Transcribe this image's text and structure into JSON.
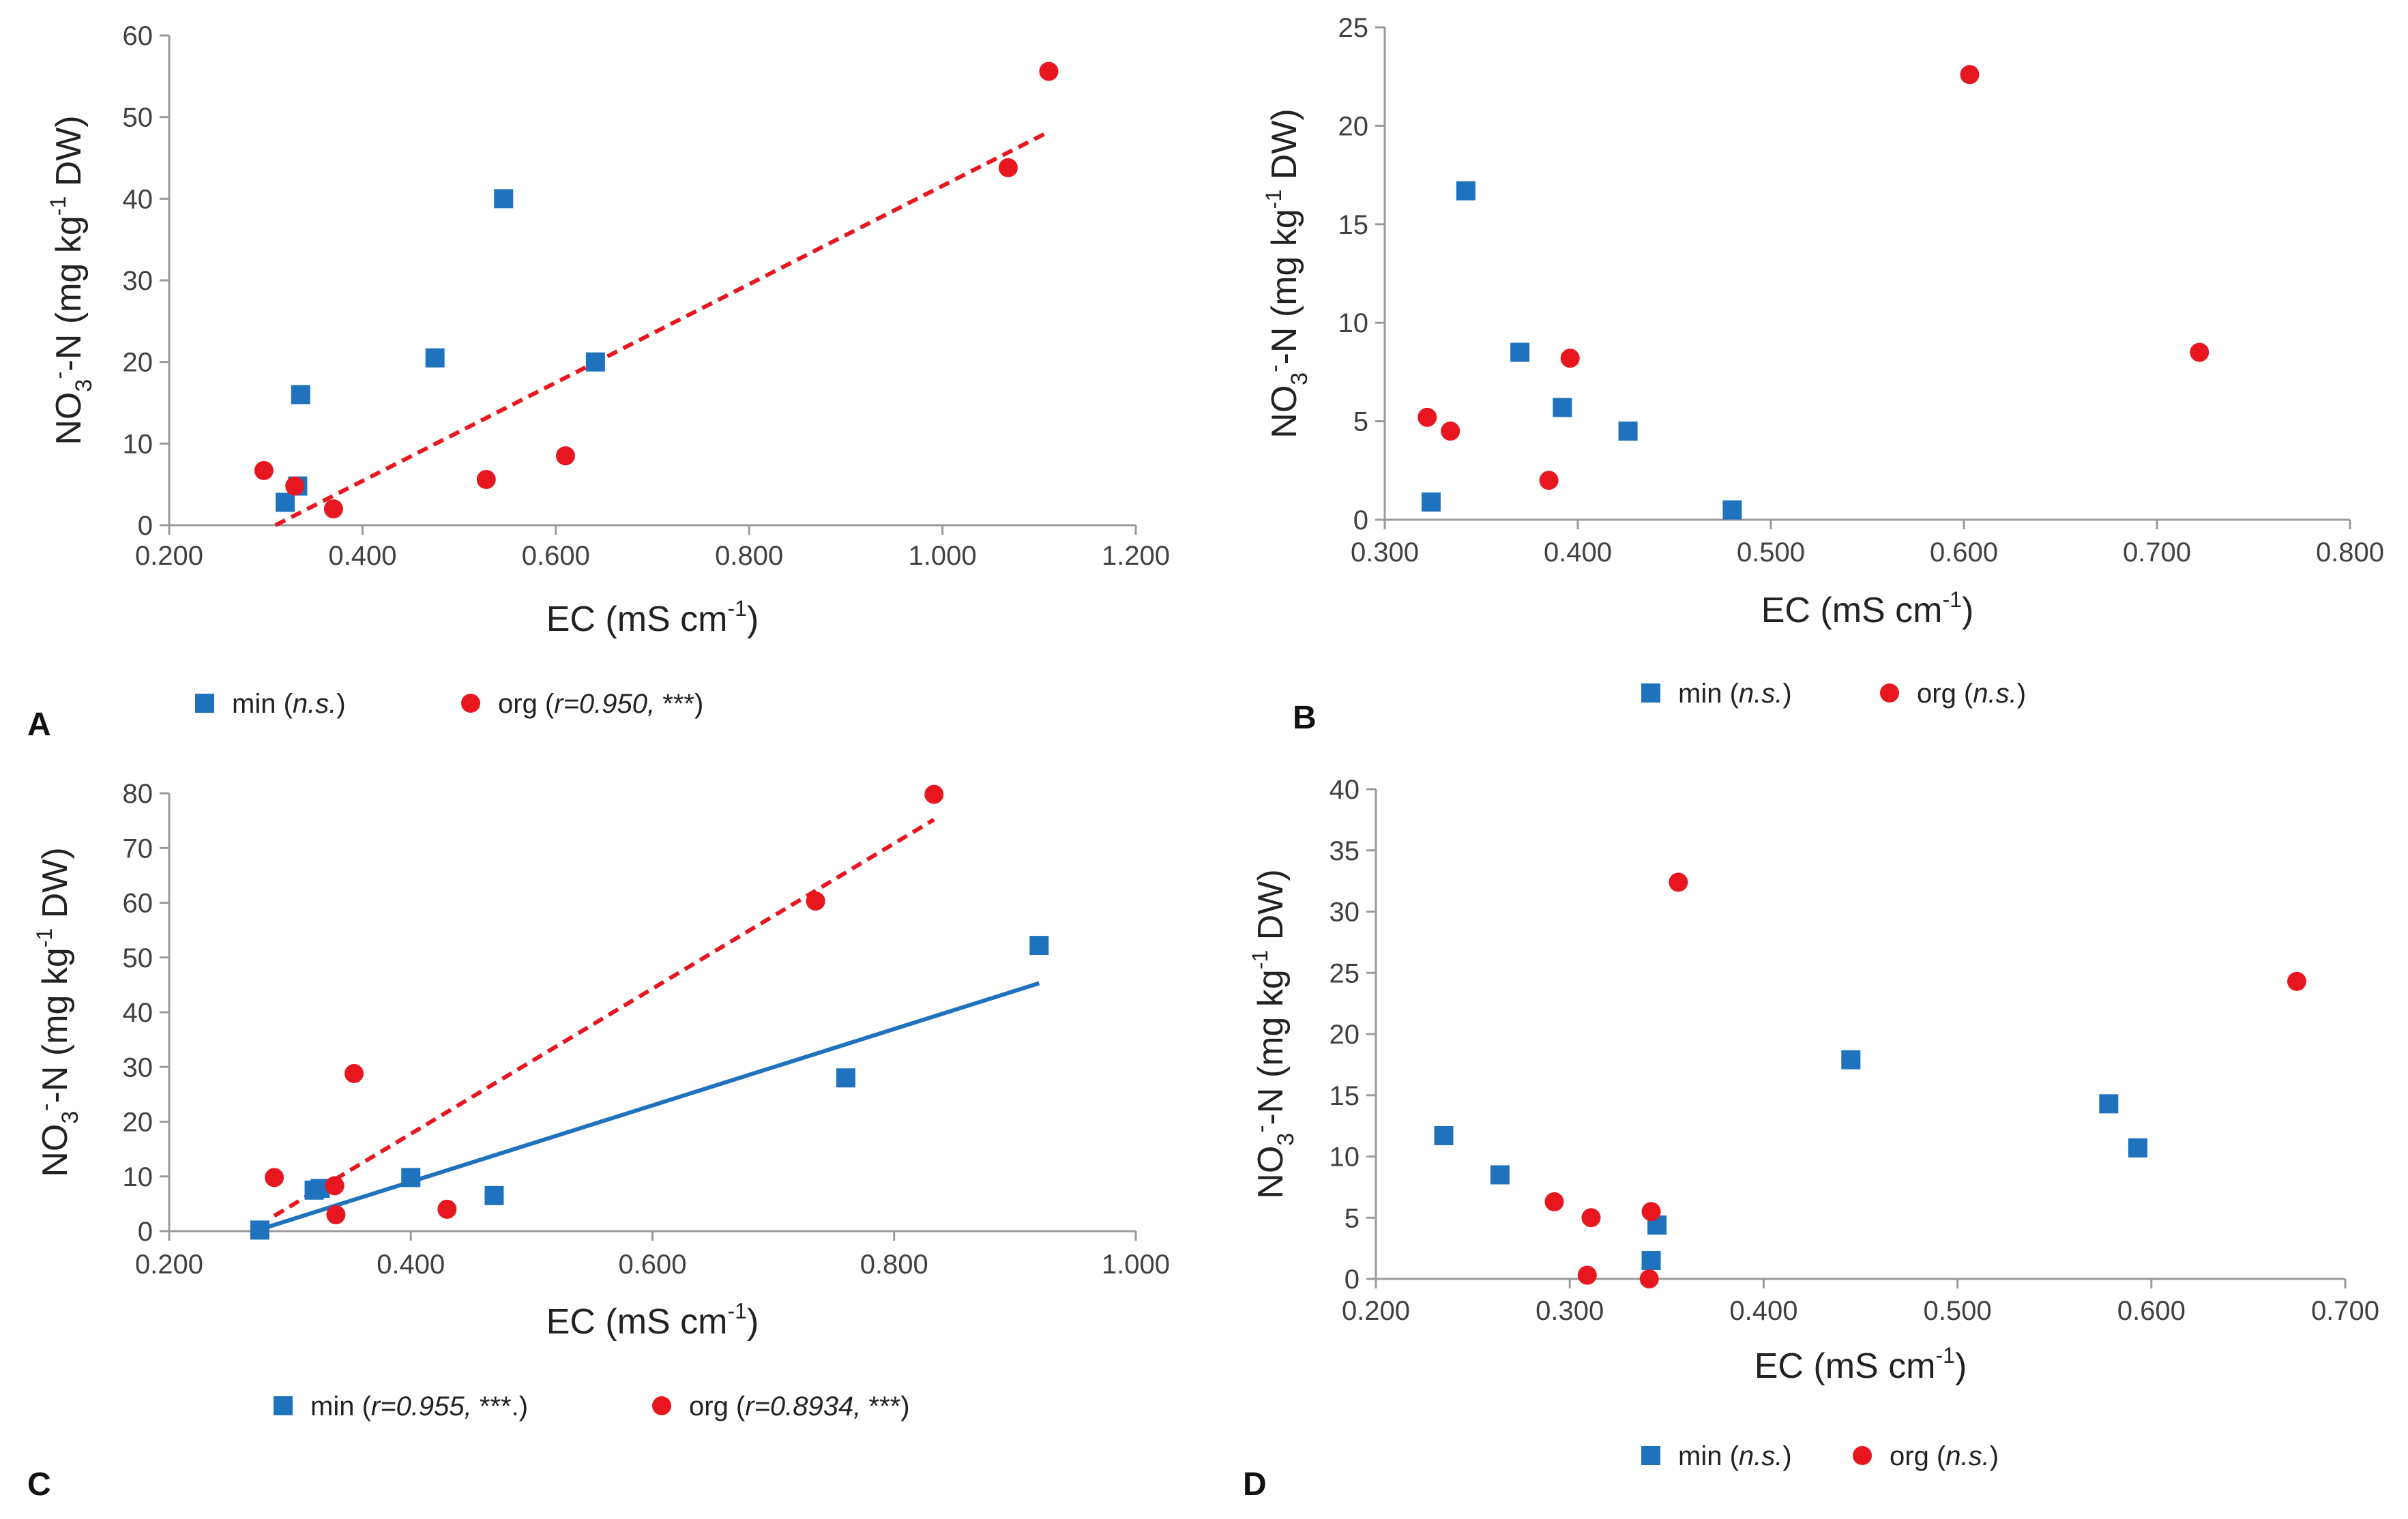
{
  "figure_title": "",
  "colors": {
    "min": "#1f72bd",
    "org": "#e8161e",
    "axis": "#9a9a9a",
    "text": "#222222"
  },
  "chart_data": [
    {
      "panel": "A",
      "type": "scatter",
      "title": "",
      "xlabel": "EC (mS cm",
      "xlabel_sup": "-1",
      "xlabel_end": ")",
      "ylabel": "NO3-N (mg kg-1 DW)",
      "ylabel_parts": [
        "NO",
        "3",
        "-",
        "-N (mg kg",
        "-1",
        " DW)"
      ],
      "xlim": [
        0.2,
        1.2
      ],
      "ylim": [
        0,
        60
      ],
      "x_ticks": [
        0.2,
        0.4,
        0.6,
        0.8,
        1.0,
        1.2
      ],
      "x_tick_labels": [
        "0.200",
        "0.400",
        "0.600",
        "0.800",
        "1.000",
        "1.200"
      ],
      "y_ticks": [
        0,
        10,
        20,
        30,
        40,
        50,
        60
      ],
      "y_tick_labels": [
        "0",
        "10",
        "20",
        "30",
        "40",
        "50",
        "60"
      ],
      "grid": false,
      "legend": {
        "position": "bottom-left",
        "items": [
          {
            "series": "min",
            "label": "min (",
            "stat": "n.s.",
            "close": ")"
          },
          {
            "series": "org",
            "label": "org (",
            "stat": "r=0.950,",
            "close": " ***)"
          }
        ]
      },
      "series": [
        {
          "name": "min",
          "marker": "square",
          "points": [
            [
              0.32,
              2.8
            ],
            [
              0.333,
              4.8
            ],
            [
              0.336,
              16.0
            ],
            [
              0.475,
              20.5
            ],
            [
              0.546,
              40.0
            ],
            [
              0.641,
              20.0
            ]
          ]
        },
        {
          "name": "org",
          "marker": "circle",
          "points": [
            [
              0.298,
              6.7
            ],
            [
              0.33,
              4.8
            ],
            [
              0.37,
              2.0
            ],
            [
              0.528,
              5.6
            ],
            [
              0.61,
              8.5
            ],
            [
              1.068,
              43.8
            ],
            [
              1.11,
              55.6
            ]
          ]
        }
      ],
      "trendlines": [
        {
          "series": "org",
          "style": "dashed",
          "start": [
            0.31,
            0
          ],
          "end": [
            1.11,
            48.2
          ]
        }
      ]
    },
    {
      "panel": "B",
      "type": "scatter",
      "title": "",
      "xlabel": "EC (mS cm",
      "xlabel_sup": "-1",
      "xlabel_end": ")",
      "ylabel": "NO3-N (mg kg-1 DW)",
      "ylabel_parts": [
        "NO",
        "3",
        "-",
        "-N (mg kg",
        "-1",
        " DW)"
      ],
      "xlim": [
        0.3,
        0.8
      ],
      "ylim": [
        0,
        25
      ],
      "x_ticks": [
        0.3,
        0.4,
        0.5,
        0.6,
        0.7,
        0.8
      ],
      "x_tick_labels": [
        "0.300",
        "0.400",
        "0.500",
        "0.600",
        "0.700",
        "0.800"
      ],
      "y_ticks": [
        0,
        5,
        10,
        15,
        20,
        25
      ],
      "y_tick_labels": [
        "0",
        "5",
        "10",
        "15",
        "20",
        "25"
      ],
      "grid": false,
      "legend": {
        "position": "bottom-center",
        "items": [
          {
            "series": "min",
            "label": "min (",
            "stat": "n.s.",
            "close": ")"
          },
          {
            "series": "org",
            "label": "org (",
            "stat": "n.s.",
            "close": ")"
          }
        ]
      },
      "series": [
        {
          "name": "min",
          "marker": "square",
          "points": [
            [
              0.324,
              0.9
            ],
            [
              0.342,
              16.7
            ],
            [
              0.37,
              8.5
            ],
            [
              0.392,
              5.7
            ],
            [
              0.426,
              4.5
            ],
            [
              0.48,
              0.5
            ]
          ]
        },
        {
          "name": "org",
          "marker": "circle",
          "points": [
            [
              0.322,
              5.2
            ],
            [
              0.334,
              4.5
            ],
            [
              0.385,
              2.0
            ],
            [
              0.396,
              8.2
            ],
            [
              0.603,
              22.6
            ],
            [
              0.722,
              8.5
            ]
          ]
        }
      ],
      "trendlines": []
    },
    {
      "panel": "C",
      "type": "scatter",
      "title": "",
      "xlabel": "EC (mS cm",
      "xlabel_sup": "-1",
      "xlabel_end": ")",
      "ylabel": "NO3-N (mg kg-1 DW)",
      "ylabel_parts": [
        "NO",
        "3",
        "-",
        "-N (mg kg",
        "-1",
        " DW)"
      ],
      "xlim": [
        0.2,
        1.0
      ],
      "ylim": [
        0,
        80
      ],
      "x_ticks": [
        0.2,
        0.4,
        0.6,
        0.8,
        1.0
      ],
      "x_tick_labels": [
        "0.200",
        "0.400",
        "0.600",
        "0.800",
        "1.000"
      ],
      "y_ticks": [
        0,
        10,
        20,
        30,
        40,
        50,
        60,
        70,
        80
      ],
      "y_tick_labels": [
        "0",
        "10",
        "20",
        "30",
        "40",
        "50",
        "60",
        "70",
        "80"
      ],
      "grid": false,
      "legend": {
        "position": "bottom-center",
        "items": [
          {
            "series": "min",
            "label": "min (",
            "stat": "r=0.955,",
            "close": " ***.)"
          },
          {
            "series": "org",
            "label": "org (",
            "stat": "r=0.8934,",
            "close": " ***)"
          }
        ]
      },
      "series": [
        {
          "name": "min",
          "marker": "square",
          "points": [
            [
              0.275,
              0.2
            ],
            [
              0.32,
              7.5
            ],
            [
              0.325,
              7.8
            ],
            [
              0.4,
              9.8
            ],
            [
              0.469,
              6.5
            ],
            [
              0.76,
              28.0
            ],
            [
              0.92,
              52.2
            ]
          ]
        },
        {
          "name": "org",
          "marker": "circle",
          "points": [
            [
              0.287,
              9.8
            ],
            [
              0.337,
              8.3
            ],
            [
              0.338,
              3.0
            ],
            [
              0.353,
              28.8
            ],
            [
              0.43,
              4.0
            ],
            [
              0.735,
              60.3
            ],
            [
              0.833,
              79.8
            ]
          ]
        }
      ],
      "trendlines": [
        {
          "series": "min",
          "style": "solid",
          "start": [
            0.275,
            0.3
          ],
          "end": [
            0.92,
            45.3
          ]
        },
        {
          "series": "org",
          "style": "dashed",
          "start": [
            0.287,
            2.8
          ],
          "end": [
            0.833,
            75.2
          ]
        }
      ]
    },
    {
      "panel": "D",
      "type": "scatter",
      "title": "",
      "xlabel": "EC (mS cm",
      "xlabel_sup": "-1",
      "xlabel_end": ")",
      "ylabel": "NO3-N (mg kg-1 DW)",
      "ylabel_parts": [
        "NO",
        "3",
        "-",
        "-N (mg kg",
        "-1",
        " DW)"
      ],
      "xlim": [
        0.2,
        0.7
      ],
      "ylim": [
        0,
        40
      ],
      "x_ticks": [
        0.2,
        0.3,
        0.4,
        0.5,
        0.6,
        0.7
      ],
      "x_tick_labels": [
        "0.200",
        "0.300",
        "0.400",
        "0.500",
        "0.600",
        "0.700"
      ],
      "y_ticks": [
        0,
        5,
        10,
        15,
        20,
        25,
        30,
        35,
        40
      ],
      "y_tick_labels": [
        "0",
        "5",
        "10",
        "15",
        "20",
        "25",
        "30",
        "35",
        "40"
      ],
      "grid": false,
      "legend": {
        "position": "bottom-center",
        "items": [
          {
            "series": "min",
            "label": "min (",
            "stat": "n.s.",
            "close": ")"
          },
          {
            "series": "org",
            "label": "org (",
            "stat": "n.s.",
            "close": ")"
          }
        ]
      },
      "series": [
        {
          "name": "min",
          "marker": "square",
          "points": [
            [
              0.235,
              11.7
            ],
            [
              0.264,
              8.5
            ],
            [
              0.342,
              1.5
            ],
            [
              0.345,
              4.4
            ],
            [
              0.445,
              17.9
            ],
            [
              0.578,
              14.3
            ],
            [
              0.593,
              10.7
            ]
          ]
        },
        {
          "name": "org",
          "marker": "circle",
          "points": [
            [
              0.292,
              6.3
            ],
            [
              0.309,
              0.3
            ],
            [
              0.311,
              5.0
            ],
            [
              0.341,
              0.0
            ],
            [
              0.342,
              5.5
            ],
            [
              0.356,
              32.4
            ],
            [
              0.675,
              24.3
            ]
          ]
        }
      ],
      "trendlines": []
    }
  ]
}
